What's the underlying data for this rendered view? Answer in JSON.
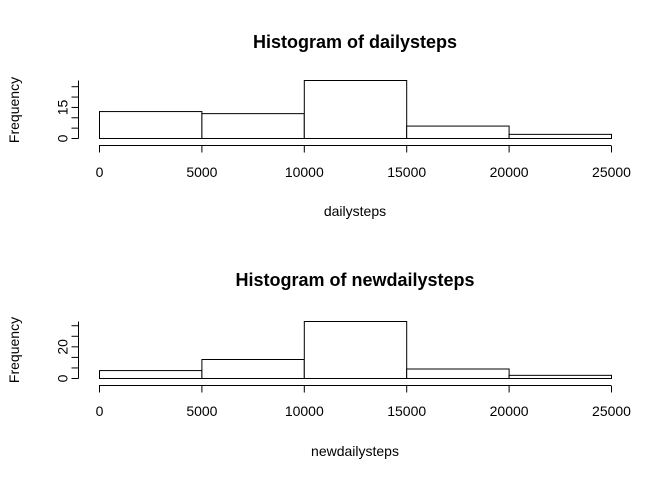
{
  "chart_data": [
    {
      "type": "bar",
      "title": "Histogram of dailysteps",
      "xlabel": "dailysteps",
      "ylabel": "Frequency",
      "bins": [
        [
          0,
          5000
        ],
        [
          5000,
          10000
        ],
        [
          10000,
          15000
        ],
        [
          15000,
          20000
        ],
        [
          20000,
          25000
        ]
      ],
      "values": [
        13,
        12,
        28,
        6,
        2
      ],
      "xlim": [
        0,
        25000
      ],
      "ylim": [
        0,
        28
      ],
      "x_ticks": [
        "0",
        "5000",
        "10000",
        "15000",
        "20000",
        "25000"
      ],
      "y_ticks": [
        "0",
        "15"
      ],
      "y_tick_values": [
        0,
        15
      ]
    },
    {
      "type": "bar",
      "title": "Histogram of newdailysteps",
      "xlabel": "newdailysteps",
      "ylabel": "Frequency",
      "bins": [
        [
          0,
          5000
        ],
        [
          5000,
          10000
        ],
        [
          10000,
          15000
        ],
        [
          15000,
          20000
        ],
        [
          20000,
          25000
        ]
      ],
      "values": [
        5,
        12,
        36,
        6,
        2
      ],
      "xlim": [
        0,
        25000
      ],
      "ylim": [
        0,
        36
      ],
      "x_ticks": [
        "0",
        "5000",
        "10000",
        "15000",
        "20000",
        "25000"
      ],
      "y_ticks": [
        "0",
        "20"
      ],
      "y_tick_values": [
        0,
        20
      ]
    }
  ]
}
